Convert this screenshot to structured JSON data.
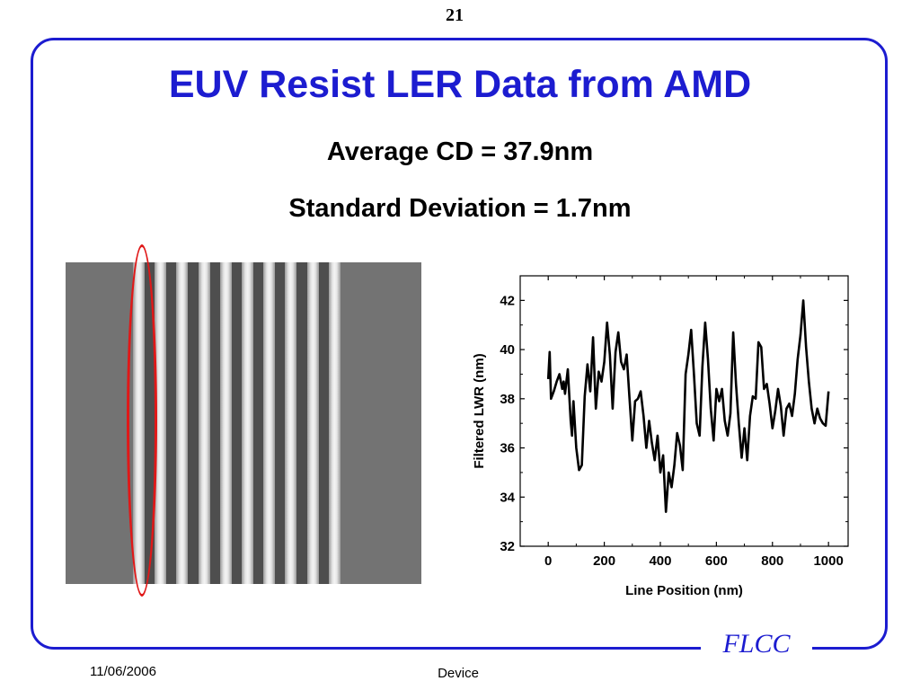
{
  "slide": {
    "number": "21",
    "title": "EUV Resist LER Data from AMD",
    "stat_1": "Average CD = 37.9nm",
    "stat_2": "Standard Deviation = 1.7nm",
    "footer_date": "11/06/2006",
    "footer_center": "Device",
    "logo": "FLCC"
  },
  "colors": {
    "accent": "#1c1cd0",
    "highlight": "#e01818",
    "sem_background": "#737373"
  },
  "sem_image": {
    "description_icon": "sem-micrograph",
    "line_count": 10
  },
  "chart_data": {
    "type": "line",
    "xlabel": "Line Position (nm)",
    "ylabel": "Filtered LWR (nm)",
    "xlim": [
      -100,
      1070
    ],
    "ylim": [
      32,
      43
    ],
    "xticks": [
      0,
      200,
      400,
      600,
      800,
      1000
    ],
    "yticks": [
      32,
      34,
      36,
      38,
      40,
      42
    ],
    "grid": false,
    "series": [
      {
        "x": [
          0,
          5,
          10,
          20,
          30,
          40,
          50,
          55,
          60,
          70,
          80,
          85,
          90,
          100,
          110,
          120,
          130,
          140,
          150,
          160,
          170,
          180,
          190,
          200,
          210,
          220,
          230,
          240,
          250,
          260,
          270,
          280,
          290,
          300,
          310,
          320,
          330,
          340,
          350,
          360,
          370,
          380,
          390,
          400,
          410,
          420,
          430,
          440,
          450,
          460,
          470,
          480,
          490,
          500,
          510,
          520,
          530,
          540,
          550,
          560,
          570,
          580,
          590,
          600,
          610,
          620,
          630,
          640,
          650,
          660,
          670,
          680,
          690,
          700,
          710,
          720,
          730,
          740,
          750,
          760,
          770,
          780,
          790,
          800,
          810,
          820,
          830,
          840,
          850,
          860,
          870,
          880,
          890,
          900,
          910,
          920,
          930,
          940,
          950,
          960,
          970,
          980,
          990,
          1000
        ],
        "y": [
          38.8,
          39.9,
          38.0,
          38.3,
          38.7,
          39.0,
          38.4,
          38.7,
          38.2,
          39.2,
          37.1,
          36.5,
          37.9,
          36.0,
          35.1,
          35.3,
          38.1,
          39.4,
          38.3,
          40.5,
          37.6,
          39.1,
          38.7,
          39.5,
          41.1,
          39.8,
          37.6,
          39.9,
          40.7,
          39.5,
          39.2,
          39.8,
          38.0,
          36.3,
          37.9,
          38.0,
          38.3,
          37.3,
          36.0,
          37.1,
          36.2,
          35.5,
          36.5,
          35.0,
          35.7,
          33.4,
          35.0,
          34.4,
          35.3,
          36.6,
          36.1,
          35.1,
          39.0,
          39.8,
          40.8,
          39.0,
          37.0,
          36.5,
          39.3,
          41.1,
          39.6,
          37.6,
          36.3,
          38.4,
          37.9,
          38.4,
          37.1,
          36.5,
          37.4,
          40.7,
          38.6,
          37.0,
          35.6,
          36.8,
          35.5,
          37.3,
          38.1,
          38.0,
          40.3,
          40.1,
          38.4,
          38.6,
          37.8,
          36.8,
          37.5,
          38.4,
          37.7,
          36.5,
          37.6,
          37.8,
          37.3,
          38.2,
          39.6,
          40.6,
          42.0,
          40.1,
          38.7,
          37.6,
          37.0,
          37.6,
          37.2,
          37.0,
          36.9,
          38.3
        ]
      }
    ]
  }
}
